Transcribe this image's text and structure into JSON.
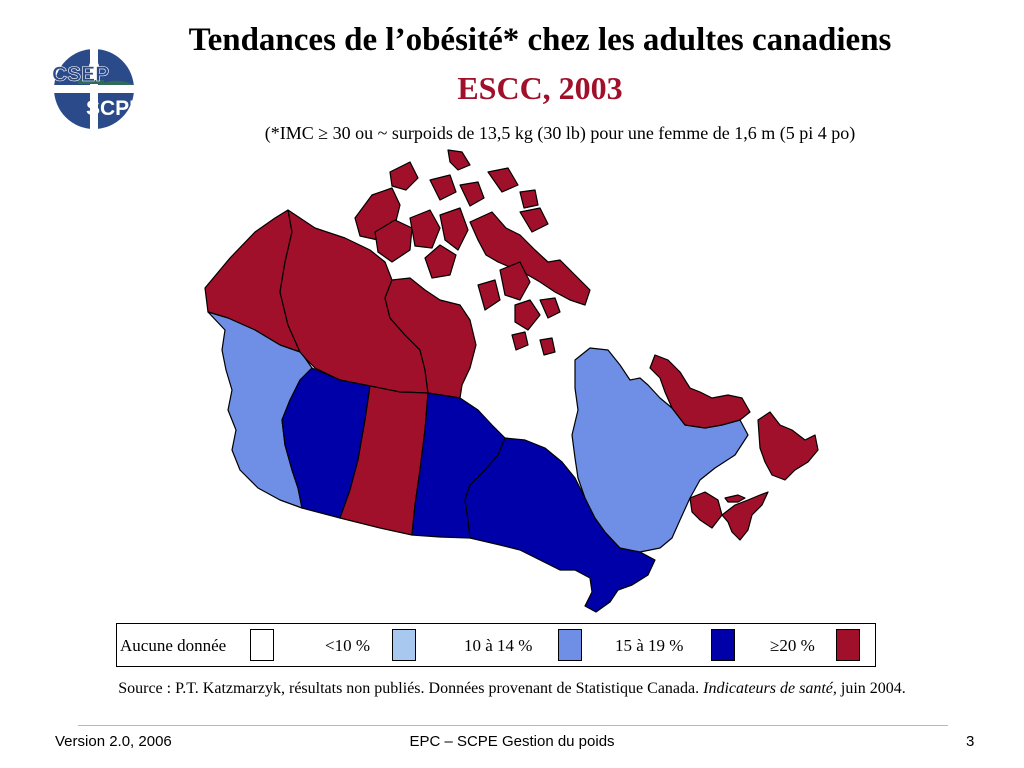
{
  "header": {
    "title": "Tendances de l’obésité* chez les adultes canadiens",
    "subtitle": "ESCC, 2003",
    "footnote": "(*IMC ≥ 30 ou ~ surpoids de 13,5 kg (30 lb) pour une femme de 1,6 m (5 pi 4 po)",
    "title_color": "#000000",
    "subtitle_color": "#a0102a"
  },
  "logo": {
    "text_top": "CSEP",
    "text_bottom": "SCPE",
    "colors": {
      "blue": "#2a4a8a",
      "green": "#2f6b5a"
    }
  },
  "legend": {
    "items": [
      {
        "label": "Aucune donnée",
        "color": "#ffffff"
      },
      {
        "label": "<10 %",
        "color": "#a9c8f0"
      },
      {
        "label": "10 à 14 %",
        "color": "#6f8fe6"
      },
      {
        "label": "15 à 19 %",
        "color": "#0000a8"
      },
      {
        "label": "≥20 %",
        "color": "#a0102a"
      }
    ]
  },
  "map": {
    "regions": [
      {
        "name": "Yukon",
        "category": "≥20 %"
      },
      {
        "name": "Territoires du Nord-Ouest",
        "category": "≥20 %"
      },
      {
        "name": "Nunavut",
        "category": "≥20 %"
      },
      {
        "name": "Colombie-Britannique",
        "category": "10 à 14 %"
      },
      {
        "name": "Alberta",
        "category": "15 à 19 %"
      },
      {
        "name": "Saskatchewan",
        "category": "≥20 %"
      },
      {
        "name": "Manitoba",
        "category": "15 à 19 %"
      },
      {
        "name": "Ontario",
        "category": "15 à 19 %"
      },
      {
        "name": "Québec",
        "category": "10 à 14 %"
      },
      {
        "name": "Terre-Neuve-et-Labrador",
        "category": "≥20 %"
      },
      {
        "name": "Nouveau-Brunswick",
        "category": "≥20 %"
      },
      {
        "name": "Nouvelle-Écosse",
        "category": "≥20 %"
      },
      {
        "name": "Île-du-Prince-Édouard",
        "category": "≥20 %"
      }
    ]
  },
  "source": {
    "prefix": "Source : P.T. Katzmarzyk, résultats non publiés. Données provenant de Statistique Canada. ",
    "italic": "Indicateurs de santé,",
    "suffix": " juin 2004."
  },
  "footer": {
    "left": "Version 2.0, 2006",
    "center": "EPC – SCPE Gestion du poids",
    "right": "3"
  }
}
